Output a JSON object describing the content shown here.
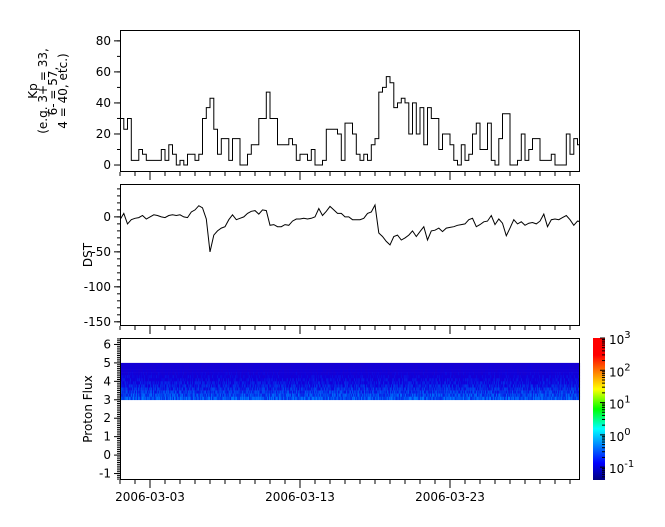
{
  "chart_data": [
    {
      "type": "line",
      "ylabel_lines": [
        "Kp",
        "(e.g. 3+ = 33,",
        "6- = 57,",
        "4 = 40, etc.)"
      ],
      "x_start": "2006-03-01T00:00",
      "x_step_hours": 6,
      "ylim": [
        -4.5,
        87
      ],
      "yticks": [
        0,
        20,
        40,
        60,
        80
      ],
      "ytick_labels": [
        "0",
        "20",
        "40",
        "60",
        "80"
      ],
      "values": [
        30,
        23,
        30,
        3,
        3,
        10,
        7,
        3,
        3,
        3,
        3,
        10,
        3,
        13,
        7,
        0,
        3,
        0,
        7,
        7,
        3,
        7,
        30,
        37,
        43,
        23,
        7,
        17,
        17,
        3,
        17,
        17,
        0,
        0,
        7,
        13,
        13,
        30,
        30,
        47,
        30,
        30,
        13,
        13,
        13,
        17,
        13,
        3,
        7,
        7,
        3,
        10,
        0,
        0,
        3,
        23,
        23,
        23,
        20,
        3,
        27,
        27,
        20,
        7,
        3,
        7,
        3,
        13,
        17,
        47,
        50,
        57,
        53,
        37,
        40,
        43,
        40,
        20,
        40,
        20,
        37,
        13,
        37,
        30,
        30,
        10,
        20,
        20,
        13,
        3,
        0,
        13,
        3,
        7,
        20,
        27,
        10,
        10,
        27,
        3,
        0,
        17,
        33,
        33,
        0,
        0,
        3,
        20,
        3,
        10,
        17,
        17,
        3,
        3,
        3,
        7,
        0,
        0,
        0,
        20,
        7,
        17,
        13,
        3
      ]
    },
    {
      "type": "line",
      "ylabel": "DST",
      "x_start": "2006-03-01T00:00",
      "x_step_hours": 6,
      "ylim": [
        -156,
        47
      ],
      "yticks": [
        0,
        -50,
        -100,
        -150
      ],
      "ytick_labels": [
        "0",
        "-50",
        "-100",
        "-150"
      ],
      "values": [
        -4,
        5,
        -10,
        -4,
        -2,
        -1,
        2,
        -3,
        0,
        3,
        2,
        0,
        -1,
        2,
        3,
        2,
        3,
        0,
        -1,
        7,
        10,
        16,
        13,
        -3,
        -50,
        -26,
        -20,
        -16,
        -14,
        -4,
        3,
        -4,
        -2,
        0,
        5,
        8,
        9,
        4,
        10,
        9,
        -12,
        -11,
        -14,
        -14,
        -11,
        -12,
        -6,
        -3,
        -3,
        -2,
        -3,
        -2,
        0,
        12,
        2,
        8,
        15,
        10,
        5,
        5,
        0,
        0,
        -4,
        -4,
        -4,
        -2,
        5,
        7,
        17,
        -23,
        -28,
        -35,
        -40,
        -28,
        -26,
        -33,
        -30,
        -26,
        -20,
        -28,
        -21,
        -14,
        -33,
        -20,
        -19,
        -16,
        -21,
        -16,
        -15,
        -14,
        -12,
        -11,
        -10,
        -4,
        -2,
        -14,
        -11,
        -7,
        -6,
        2,
        -11,
        -3,
        -9,
        -27,
        -16,
        -4,
        -10,
        -7,
        -12,
        -9,
        -8,
        -10,
        -6,
        4,
        -14,
        -4,
        -3,
        -4,
        -1,
        2,
        -4,
        -12,
        -6,
        -7
      ]
    },
    {
      "type": "heatmap",
      "ylabel": "Proton Flux",
      "ylim": [
        -1.35,
        6.35
      ],
      "yticks": [
        6,
        5,
        4,
        3,
        2,
        1,
        0,
        -1
      ],
      "ytick_labels": [
        "6",
        "5",
        "4",
        "3",
        "2",
        "1",
        "0",
        "-1"
      ],
      "band_y_range": [
        3,
        5
      ],
      "colorbar": {
        "scale": "log",
        "range": [
          0.04,
          1000
        ],
        "colormap": "jet",
        "ticks": [
          {
            "base": "10",
            "exp": "3",
            "value": 1000
          },
          {
            "base": "10",
            "exp": "2",
            "value": 100
          },
          {
            "base": "10",
            "exp": "1",
            "value": 10
          },
          {
            "base": "10",
            "exp": "0",
            "value": 1
          },
          {
            "base": "10",
            "exp": "-1",
            "value": 0.1
          }
        ]
      }
    }
  ],
  "x_axis": {
    "range": [
      "2006-03-01",
      "2006-03-31T16:00"
    ],
    "major_ticks": [
      {
        "date": "2006-03-03",
        "label": "2006-03-03"
      },
      {
        "date": "2006-03-13",
        "label": "2006-03-13"
      },
      {
        "date": "2006-03-23",
        "label": "2006-03-23"
      }
    ],
    "minor_tick_interval_days": 1
  }
}
